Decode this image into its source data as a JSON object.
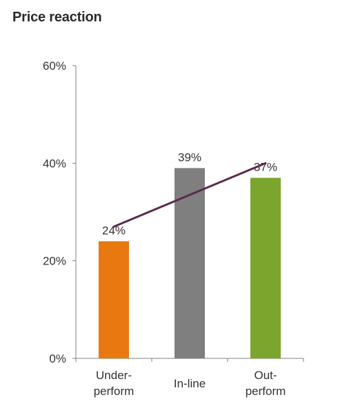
{
  "title": "Price reaction",
  "chart_data": {
    "type": "bar",
    "categories": [
      [
        "Under-",
        "perform"
      ],
      [
        "In-line"
      ],
      [
        "Out-",
        "perform"
      ]
    ],
    "values": [
      24,
      39,
      37
    ],
    "value_labels": [
      "24%",
      "39%",
      "37%"
    ],
    "bar_colors": [
      "#E8780F",
      "#7F7F7F",
      "#7BA52C"
    ],
    "trend_line": {
      "from_index": 0,
      "to_index": 2,
      "from_value": 27,
      "to_value": 40,
      "color": "#5B2A4E"
    },
    "ylim": [
      0,
      60
    ],
    "yticks": [
      0,
      20,
      40,
      60
    ],
    "ytick_labels": [
      "0%",
      "20%",
      "40%",
      "60%"
    ],
    "xlabel": "",
    "ylabel": "",
    "grid": false,
    "legend": "none"
  }
}
